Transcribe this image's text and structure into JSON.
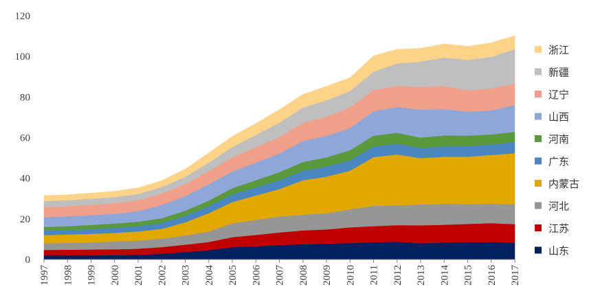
{
  "chart_data": {
    "type": "area",
    "stacked": true,
    "title": "",
    "xlabel": "",
    "ylabel": "",
    "ylim": [
      0,
      120
    ],
    "yticks": [
      0,
      20,
      40,
      60,
      80,
      100,
      120
    ],
    "grid": false,
    "legend_position": "right",
    "x": [
      "1997",
      "1998",
      "1999",
      "2000",
      "2001",
      "2002",
      "2003",
      "2004",
      "2005",
      "2006",
      "2007",
      "2008",
      "2009",
      "2010",
      "2011",
      "2012",
      "2013",
      "2014",
      "2015",
      "2016",
      "2017"
    ],
    "series": [
      {
        "name": "山东",
        "color": "#002060",
        "values": [
          2.0,
          2.0,
          2.0,
          2.1,
          2.3,
          2.8,
          3.6,
          4.6,
          6.0,
          6.5,
          7.1,
          7.5,
          7.8,
          8.1,
          8.5,
          8.7,
          8.0,
          8.3,
          8.5,
          8.6,
          8.2
        ]
      },
      {
        "name": "江苏",
        "color": "#C00000",
        "values": [
          2.7,
          2.8,
          2.9,
          2.9,
          3.0,
          3.3,
          3.7,
          4.0,
          5.0,
          5.6,
          6.2,
          6.8,
          7.0,
          7.7,
          7.9,
          8.2,
          8.8,
          8.8,
          9.0,
          9.3,
          9.2
        ]
      },
      {
        "name": "河北",
        "color": "#969696",
        "values": [
          3.3,
          3.4,
          3.5,
          3.8,
          4.0,
          4.2,
          4.5,
          5.2,
          6.8,
          7.4,
          7.9,
          7.7,
          8.0,
          8.9,
          10.0,
          9.8,
          10.3,
          10.3,
          9.8,
          9.5,
          9.8
        ]
      },
      {
        "name": "内蒙古",
        "color": "#E3A800",
        "values": [
          4.0,
          4.1,
          4.2,
          4.3,
          4.5,
          4.8,
          6.5,
          9.0,
          10.5,
          12.0,
          13.5,
          17.0,
          18.0,
          19.0,
          24.0,
          25.0,
          22.8,
          23.2,
          23.3,
          24.1,
          25.1
        ]
      },
      {
        "name": "广东",
        "color": "#4A86C1",
        "values": [
          2.2,
          2.2,
          2.4,
          2.5,
          2.6,
          2.9,
          3.2,
          3.5,
          3.8,
          4.0,
          4.3,
          4.7,
          5.0,
          5.1,
          5.3,
          5.3,
          5.1,
          5.1,
          5.3,
          5.1,
          5.5
        ]
      },
      {
        "name": "河南",
        "color": "#5B9A3C",
        "values": [
          1.8,
          1.9,
          2.0,
          2.1,
          2.2,
          2.3,
          2.5,
          2.7,
          3.0,
          3.5,
          4.0,
          4.3,
          4.5,
          5.0,
          5.3,
          5.4,
          5.0,
          5.4,
          5.1,
          5.0,
          5.0
        ]
      },
      {
        "name": "山西",
        "color": "#8FA6D9",
        "values": [
          4.8,
          4.8,
          4.8,
          4.8,
          5.2,
          6.5,
          7.2,
          8.0,
          8.3,
          8.7,
          9.2,
          10.3,
          10.6,
          10.9,
          12.0,
          12.7,
          13.8,
          12.9,
          11.8,
          11.8,
          13.2
        ]
      },
      {
        "name": "辽宁",
        "color": "#F0A08A",
        "values": [
          5.0,
          5.0,
          5.1,
          5.2,
          5.4,
          5.6,
          6.0,
          6.5,
          7.0,
          7.6,
          8.2,
          9.0,
          9.5,
          10.2,
          10.5,
          10.4,
          11.2,
          11.4,
          10.5,
          10.9,
          10.5
        ]
      },
      {
        "name": "新疆",
        "color": "#BFBFBF",
        "values": [
          3.0,
          3.0,
          3.0,
          3.0,
          3.1,
          3.2,
          3.5,
          4.2,
          5.0,
          6.0,
          7.0,
          7.5,
          8.0,
          8.0,
          9.0,
          11.0,
          12.5,
          14.0,
          15.0,
          15.5,
          17.0
        ]
      },
      {
        "name": "浙江",
        "color": "#FDD38A",
        "values": [
          2.7,
          2.7,
          2.8,
          2.9,
          3.0,
          3.2,
          3.8,
          4.8,
          5.2,
          5.7,
          6.4,
          6.5,
          6.9,
          6.6,
          7.8,
          7.0,
          6.5,
          6.8,
          6.7,
          6.9,
          6.7
        ]
      }
    ]
  }
}
